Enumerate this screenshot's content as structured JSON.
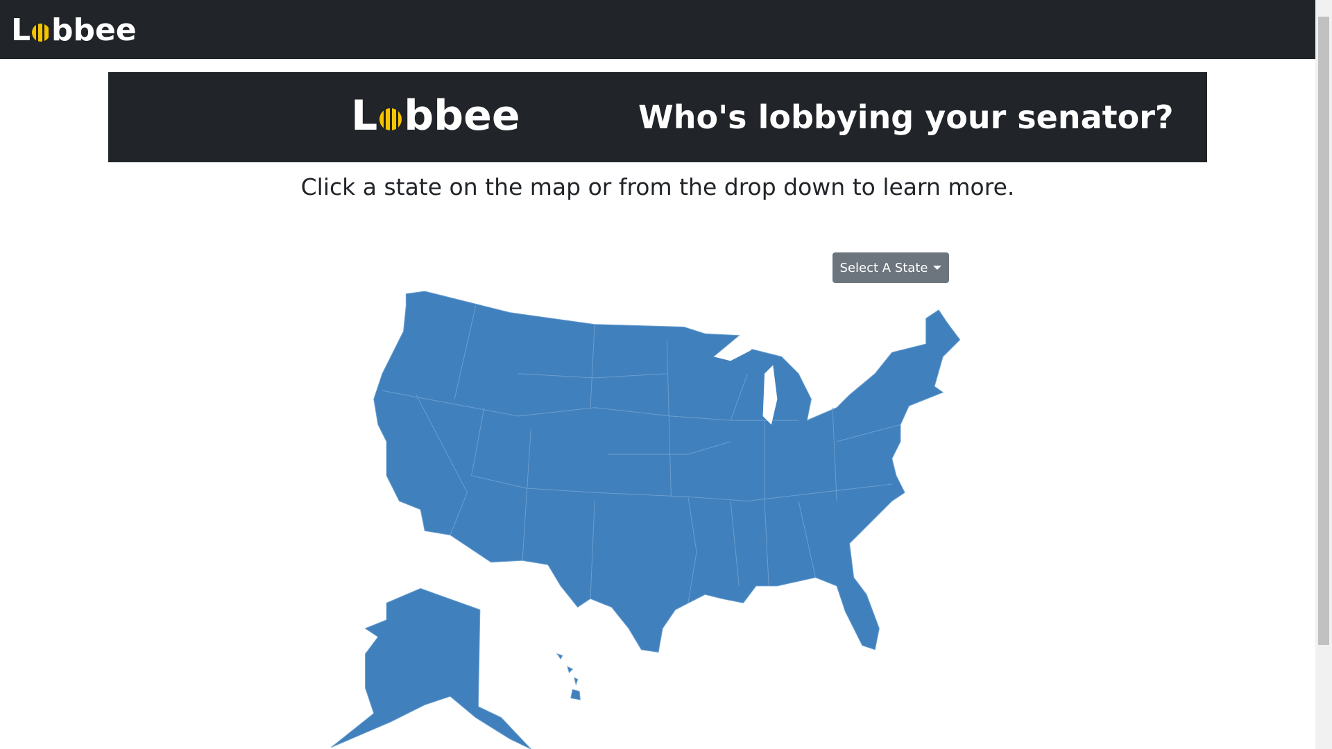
{
  "navbar": {
    "logo_left": "L",
    "logo_right": "bbee"
  },
  "banner": {
    "logo_left": "L",
    "logo_right": "bbee",
    "title": "Who's lobbying your senator?"
  },
  "instructions": "Click a state on the map or from the drop down to learn more.",
  "state_select": {
    "label": "Select A State"
  }
}
